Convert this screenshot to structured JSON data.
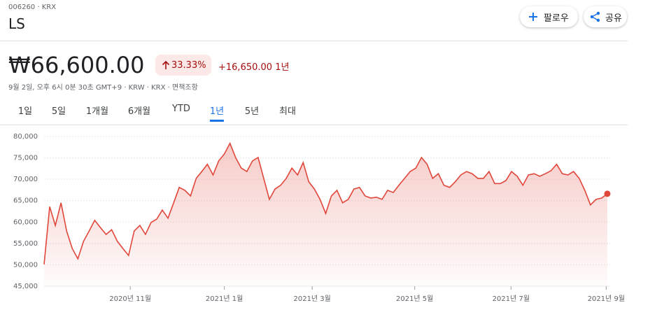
{
  "header": {
    "ticker": "006260 · KRX",
    "name": "LS",
    "follow": "팔로우",
    "share": "공유"
  },
  "quote": {
    "price": "₩66,600.00",
    "change_pct": "33.33%",
    "change": "+16,650.00",
    "period": "1년",
    "info": "9월 2일, 오후 6시 0분 30초 GMT+9 · KRW · KRX · 면책조항"
  },
  "ranges": [
    "1일",
    "5일",
    "1개월",
    "6개월",
    "YTD",
    "1년",
    "5년",
    "최대"
  ],
  "selected_range": 5,
  "chart_data": {
    "type": "line",
    "color": "#e0463a",
    "values": [
      50100,
      63600,
      59200,
      64500,
      57900,
      53800,
      51400,
      55500,
      57900,
      60400,
      58700,
      57100,
      58200,
      55500,
      53800,
      52200,
      57900,
      59200,
      57100,
      59900,
      60700,
      62800,
      60900,
      64500,
      68100,
      67400,
      66100,
      70200,
      71800,
      73500,
      71000,
      74300,
      75900,
      78400,
      75100,
      72600,
      71800,
      74300,
      75100,
      70200,
      65300,
      67700,
      68600,
      70200,
      72600,
      71000,
      73900,
      69400,
      67700,
      65300,
      62000,
      66100,
      67400,
      64500,
      65300,
      67700,
      68100,
      66100,
      65600,
      65800,
      65300,
      67400,
      66900,
      68600,
      70200,
      71800,
      72600,
      75100,
      73500,
      70200,
      71300,
      68600,
      68100,
      69400,
      71000,
      71800,
      71300,
      70200,
      70200,
      71800,
      69000,
      69000,
      69700,
      71800,
      70700,
      68600,
      71000,
      71300,
      70700,
      71300,
      72000,
      73500,
      71300,
      71000,
      71800,
      70200,
      67400,
      64000,
      65300,
      65600,
      66600
    ],
    "xlim": [
      0,
      100
    ],
    "xticks": [
      {
        "value": 15.3,
        "label": "2020년 11월"
      },
      {
        "value": 32,
        "label": "2021년 1월"
      },
      {
        "value": 47.6,
        "label": "2021년 3월"
      },
      {
        "value": 65.8,
        "label": "2021년 5월"
      },
      {
        "value": 82.9,
        "label": "2021년 7월"
      },
      {
        "value": 99.8,
        "label": "2021년 9월"
      }
    ],
    "ylim": [
      45000,
      80000
    ],
    "yticks": [
      {
        "value": 45000,
        "label": "45,000"
      },
      {
        "value": 50000,
        "label": "50,000"
      },
      {
        "value": 55000,
        "label": "55,000"
      },
      {
        "value": 60000,
        "label": "60,000"
      },
      {
        "value": 65000,
        "label": "65,000"
      },
      {
        "value": 70000,
        "label": "70,000"
      },
      {
        "value": 75000,
        "label": "75,000"
      },
      {
        "value": 80000,
        "label": "80,000"
      }
    ],
    "grid": true
  }
}
